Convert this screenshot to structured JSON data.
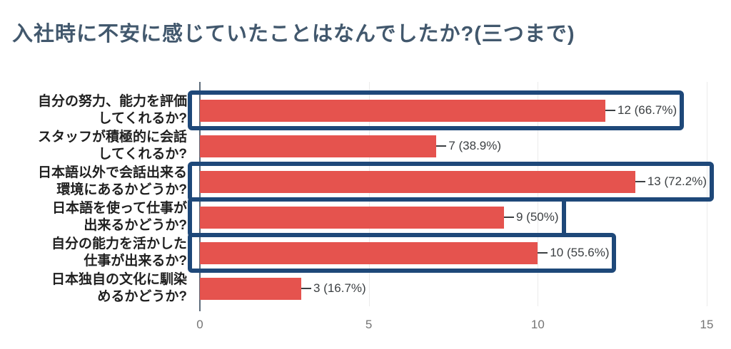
{
  "title": "入社時に不安に感じていたことはなんでしたか?(三つまで)",
  "chart_data": {
    "type": "bar",
    "orientation": "horizontal",
    "title": "入社時に不安に感じていたことはなんでしたか?(三つまで)",
    "categories": [
      [
        "自分の努力、能力を評価",
        "してくれるか?"
      ],
      [
        "スタッフが積極的に会話",
        "してくれるか?"
      ],
      [
        "日本語以外で会話出来る",
        "環境にあるかどうか?"
      ],
      [
        "日本語を使って仕事が",
        "出来るかどうか?"
      ],
      [
        "自分の能力を活かした",
        "仕事が出来るか?"
      ],
      [
        "日本独自の文化に馴染",
        "めるかどうか?"
      ]
    ],
    "values": [
      12,
      7,
      13,
      9,
      10,
      3
    ],
    "value_labels": [
      "12 (66.7%)",
      "7 (38.9%)",
      "13 (72.2%)",
      "9 (50%)",
      "10 (55.6%)",
      "3 (16.7%)"
    ],
    "highlighted": [
      true,
      false,
      true,
      true,
      true,
      false
    ],
    "xlim": [
      0,
      15
    ],
    "x_ticks": [
      "0",
      "5",
      "10",
      "15"
    ],
    "grid": true,
    "legend": "none",
    "colors": {
      "bar": "#e5534e",
      "highlight_box": "#1e4879",
      "title": "#42586d",
      "axis": "#5e6d7c",
      "gridline": "#ebebeb",
      "value_label": "#3c4043",
      "tick_label": "#757575",
      "category_label": "#1f1f1f"
    }
  }
}
